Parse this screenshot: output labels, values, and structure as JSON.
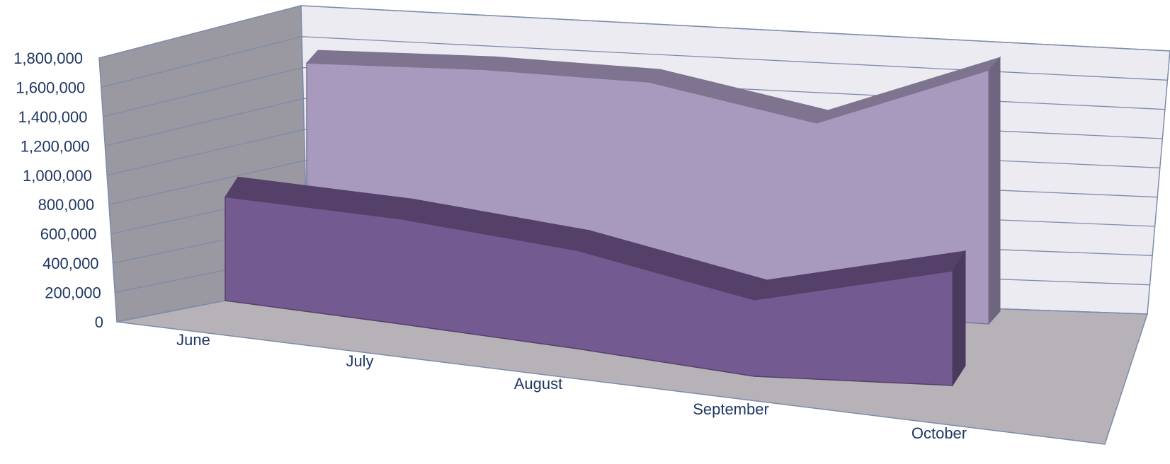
{
  "chart_data": {
    "type": "area",
    "title": "",
    "xlabel": "",
    "ylabel": "",
    "categories": [
      "June",
      "July",
      "August",
      "September",
      "October"
    ],
    "ylim": [
      0,
      1800000
    ],
    "yticks": [
      "0",
      "200,000",
      "400,000",
      "600,000",
      "800,000",
      "1,000,000",
      "1,200,000",
      "1,400,000",
      "1,600,000",
      "1,800,000"
    ],
    "series": [
      {
        "values": [
          760000,
          770000,
          720000,
          560000,
          840000
        ],
        "color": "#735a91",
        "top_color": "#544068",
        "side_color": "#4a3a5e"
      },
      {
        "values": [
          1620000,
          1640000,
          1610000,
          1380000,
          1840000
        ],
        "color": "#a899bf",
        "top_color": "#7e7490",
        "side_color": "#6e6680"
      }
    ],
    "grid": true,
    "legend": "none",
    "style": "3d-area",
    "colors": {
      "back_wall": "#ecebf1",
      "side_wall": "#9a99a1",
      "floor": "#b6b2b7",
      "gridline": "#7d8bab",
      "text": "#1f3864"
    }
  }
}
